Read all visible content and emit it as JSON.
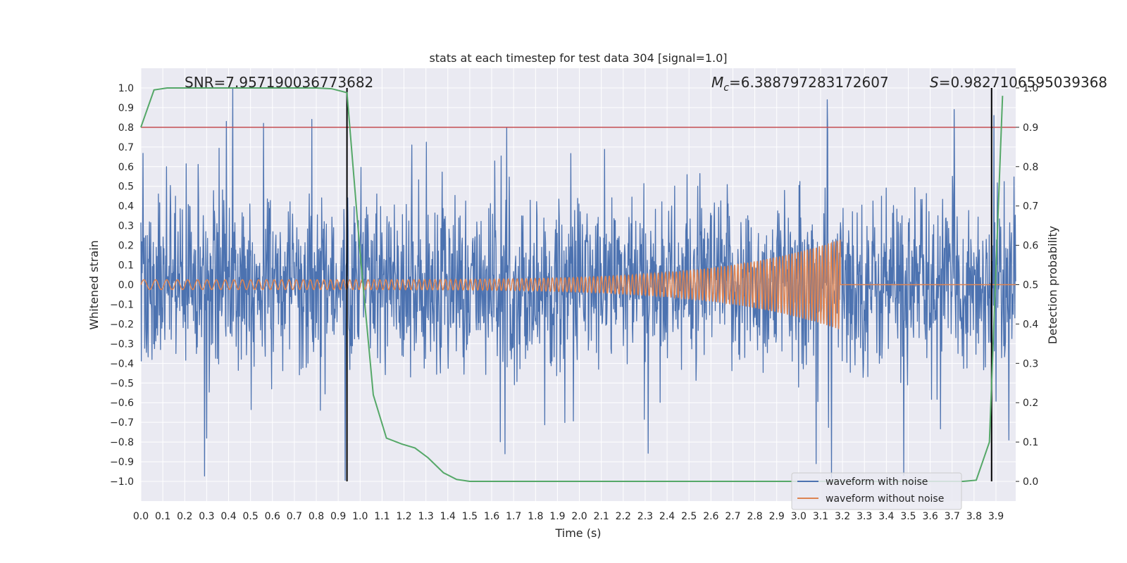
{
  "chart_data": {
    "type": "line",
    "title": "stats at each timestep for test data 304 [signal=1.0]",
    "xlabel": "Time (s)",
    "ylabel": "Whitened strain",
    "y2label": "Detection probability",
    "xlim": [
      0.0,
      3.99
    ],
    "ylim": [
      -1.1,
      1.1
    ],
    "y2lim": [
      -0.05,
      1.05
    ],
    "xticks": [
      "0.0",
      "0.1",
      "0.2",
      "0.3",
      "0.4",
      "0.5",
      "0.6",
      "0.7",
      "0.8",
      "0.9",
      "1.0",
      "1.1",
      "1.2",
      "1.3",
      "1.4",
      "1.5",
      "1.6",
      "1.7",
      "1.8",
      "1.9",
      "2.0",
      "2.1",
      "2.2",
      "2.3",
      "2.4",
      "2.5",
      "2.6",
      "2.7",
      "2.8",
      "2.9",
      "3.0",
      "3.1",
      "3.2",
      "3.3",
      "3.4",
      "3.5",
      "3.6",
      "3.7",
      "3.8",
      "3.9"
    ],
    "yticks": [
      "1.0",
      "0.9",
      "0.8",
      "0.7",
      "0.6",
      "0.5",
      "0.4",
      "0.3",
      "0.2",
      "0.1",
      "0.0",
      "−0.1",
      "−0.2",
      "−0.3",
      "−0.4",
      "−0.5",
      "−0.6",
      "−0.7",
      "−0.8",
      "−0.9",
      "−1.0"
    ],
    "y2ticks": [
      "1.0",
      "0.9",
      "0.8",
      "0.7",
      "0.6",
      "0.5",
      "0.4",
      "0.3",
      "0.2",
      "0.1",
      "0.0"
    ],
    "grid": true,
    "legend_position": "lower right",
    "annotations": {
      "snr": "SNR=7.957190036773682",
      "mc_symbol": "M",
      "mc_sub": "c",
      "mc_value": "=6.388797283172607",
      "s_symbol": "S",
      "s_value": "=0.9827106595039368"
    },
    "noisy_waveform": {
      "name": "waveform with noise",
      "color": "#4c72b0",
      "x_range": [
        0.0,
        3.99
      ],
      "typical_amplitude": 0.35,
      "notable_peaks": [
        {
          "x": 0.42,
          "y": 1.0
        },
        {
          "x": 0.39,
          "y": 0.83
        },
        {
          "x": 0.56,
          "y": 0.82
        },
        {
          "x": 0.78,
          "y": 0.84
        },
        {
          "x": 0.3,
          "y": -0.78
        },
        {
          "x": 1.66,
          "y": -0.86
        },
        {
          "x": 3.08,
          "y": -0.91
        },
        {
          "x": 3.13,
          "y": 0.94
        },
        {
          "x": 3.15,
          "y": -0.98
        },
        {
          "x": 3.48,
          "y": -0.97
        },
        {
          "x": 3.71,
          "y": 0.89
        },
        {
          "x": 3.89,
          "y": 0.86
        }
      ]
    },
    "clean_waveform": {
      "name": "waveform without noise",
      "color": "#dd8452",
      "chirp_start": 0.0,
      "chirp_end": 3.19,
      "start_amplitude": 0.025,
      "peak_amplitude": 0.23,
      "start_frequency_hz": 18,
      "end_frequency_hz": 75,
      "after_merger": 0.0
    },
    "detection_probability": {
      "color": "#55a868",
      "x": [
        0.0,
        0.06,
        0.12,
        0.2,
        0.3,
        0.4,
        0.5,
        0.6,
        0.7,
        0.8,
        0.87,
        0.94,
        1.0,
        1.06,
        1.12,
        1.19,
        1.25,
        1.31,
        1.38,
        1.44,
        1.5,
        1.56,
        1.8,
        2.5,
        3.0,
        3.5,
        3.75,
        3.81,
        3.87,
        3.93
      ],
      "y": [
        0.9,
        0.995,
        1.0,
        1.0,
        1.0,
        1.0,
        1.0,
        1.0,
        1.0,
        1.0,
        0.998,
        0.988,
        0.58,
        0.22,
        0.11,
        0.095,
        0.085,
        0.06,
        0.022,
        0.005,
        0.0,
        0.0,
        0.0,
        0.0,
        0.0,
        0.0,
        0.0,
        0.003,
        0.1,
        0.98
      ]
    },
    "threshold": {
      "color": "#c44e52",
      "y": 0.8
    },
    "vertical_lines": {
      "color": "#000000",
      "x": [
        0.94,
        3.88
      ],
      "y_range": [
        -1.0,
        1.0
      ]
    },
    "legend": [
      {
        "label": "waveform with noise",
        "color": "#4c72b0"
      },
      {
        "label": "waveform without noise",
        "color": "#dd8452"
      }
    ]
  }
}
